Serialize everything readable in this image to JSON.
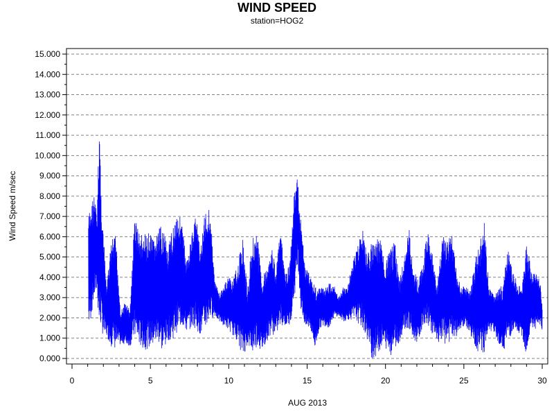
{
  "chart_data": {
    "type": "line",
    "title": "WIND SPEED",
    "subtitle": "station=HOG2",
    "xlabel": "AUG 2013",
    "ylabel": "Wind Speed m/sec",
    "xlim": [
      0,
      30
    ],
    "ylim": [
      0,
      15
    ],
    "x_ticks": [
      0,
      5,
      10,
      15,
      20,
      25,
      30
    ],
    "x_tick_labels": [
      "0",
      "5",
      "10",
      "15",
      "20",
      "25",
      "30"
    ],
    "y_ticks": [
      0,
      1,
      2,
      3,
      4,
      5,
      6,
      7,
      8,
      9,
      10,
      11,
      12,
      13,
      14,
      15
    ],
    "y_tick_labels": [
      "0.000",
      "1.000",
      "2.000",
      "3.000",
      "4.000",
      "5.000",
      "6.000",
      "7.000",
      "8.000",
      "9.000",
      "10.000",
      "11.000",
      "12.000",
      "13.000",
      "14.000",
      "15.000"
    ],
    "grid": "horizontal dashed",
    "line_color": "#0000ff",
    "envelope_note": "approximate daily envelope of the rapidly oscillating trace",
    "series": [
      {
        "x": [
          1.05,
          1.2,
          1.4,
          1.6,
          1.75,
          1.85,
          2.0,
          2.2,
          2.5,
          2.8,
          3.1,
          3.4,
          3.7,
          4.0,
          4.3,
          4.6,
          4.9,
          5.2,
          5.5,
          5.8,
          6.1,
          6.4,
          6.7,
          7.0,
          7.3,
          7.6,
          7.9,
          8.2,
          8.5,
          8.8,
          9.1,
          9.4,
          9.7,
          10.0,
          10.3,
          10.6,
          10.9,
          11.2,
          11.5,
          11.8,
          12.1,
          12.4,
          12.7,
          13.0,
          13.3,
          13.6,
          13.9,
          14.2,
          14.4,
          14.6,
          14.9,
          15.2,
          15.5,
          15.8,
          16.1,
          16.4,
          16.7,
          17.0,
          17.3,
          17.6,
          17.9,
          18.2,
          18.5,
          18.8,
          19.1,
          19.4,
          19.7,
          20.0,
          20.3,
          20.6,
          20.9,
          21.2,
          21.5,
          21.8,
          22.1,
          22.4,
          22.7,
          23.0,
          23.3,
          23.6,
          23.9,
          24.2,
          24.5,
          24.8,
          25.1,
          25.4,
          25.7,
          26.0,
          26.3,
          26.6,
          26.9,
          27.2,
          27.5,
          27.8,
          28.1,
          28.4,
          28.7,
          29.0,
          29.3,
          29.6,
          29.9,
          30.0
        ],
        "high": [
          7.1,
          7.5,
          8.2,
          7.0,
          12.2,
          8.5,
          6.2,
          3.5,
          5.8,
          6.1,
          2.3,
          2.8,
          2.4,
          7.2,
          6.2,
          6.1,
          6.2,
          5.9,
          6.3,
          6.7,
          5.3,
          6.4,
          7.4,
          6.8,
          4.8,
          6.0,
          7.2,
          5.5,
          7.3,
          7.5,
          3.9,
          3.2,
          3.6,
          4.1,
          3.9,
          4.8,
          6.0,
          3.3,
          6.1,
          6.3,
          4.1,
          4.4,
          5.7,
          4.4,
          6.3,
          4.1,
          4.7,
          8.5,
          8.9,
          6.8,
          4.5,
          4.2,
          3.6,
          3.5,
          3.5,
          3.7,
          3.7,
          3.0,
          3.5,
          3.6,
          4.8,
          5.5,
          6.5,
          5.3,
          5.7,
          6.1,
          5.8,
          4.7,
          5.4,
          5.8,
          3.9,
          5.0,
          6.5,
          4.5,
          3.8,
          4.8,
          6.4,
          5.1,
          3.5,
          6.2,
          5.8,
          6.3,
          4.6,
          3.5,
          3.6,
          3.4,
          4.8,
          5.8,
          6.8,
          3.5,
          3.2,
          3.4,
          3.7,
          5.5,
          4.3,
          3.8,
          3.4,
          5.9,
          4.3,
          4.3,
          3.7,
          2.5
        ],
        "low": [
          1.5,
          1.9,
          2.9,
          3.3,
          1.0,
          1.6,
          1.0,
          1.1,
          0.6,
          0.4,
          0.7,
          0.7,
          0.6,
          1.0,
          0.6,
          0.4,
          0.5,
          0.6,
          0.8,
          0.2,
          0.9,
          0.9,
          1.3,
          1.6,
          1.3,
          1.5,
          1.5,
          1.1,
          1.4,
          1.9,
          2.1,
          1.8,
          1.6,
          1.4,
          1.1,
          0.8,
          0.0,
          0.7,
          0.2,
          0.6,
          0.3,
          0.8,
          1.2,
          1.1,
          1.6,
          1.6,
          1.6,
          3.0,
          4.8,
          2.4,
          1.4,
          1.5,
          0.4,
          1.5,
          1.6,
          1.5,
          2.0,
          2.1,
          1.8,
          1.9,
          1.9,
          1.8,
          1.5,
          1.0,
          0.0,
          0.0,
          0.5,
          0.5,
          0.1,
          0.5,
          0.8,
          1.5,
          1.2,
          0.8,
          0.8,
          1.7,
          1.6,
          1.2,
          0.8,
          0.7,
          0.7,
          0.8,
          1.0,
          1.5,
          1.6,
          1.2,
          0.5,
          0.1,
          0.2,
          1.3,
          1.3,
          0.8,
          0.3,
          0.9,
          1.2,
          1.2,
          1.1,
          0.1,
          1.5,
          1.4,
          1.6,
          1.3
        ]
      }
    ]
  }
}
